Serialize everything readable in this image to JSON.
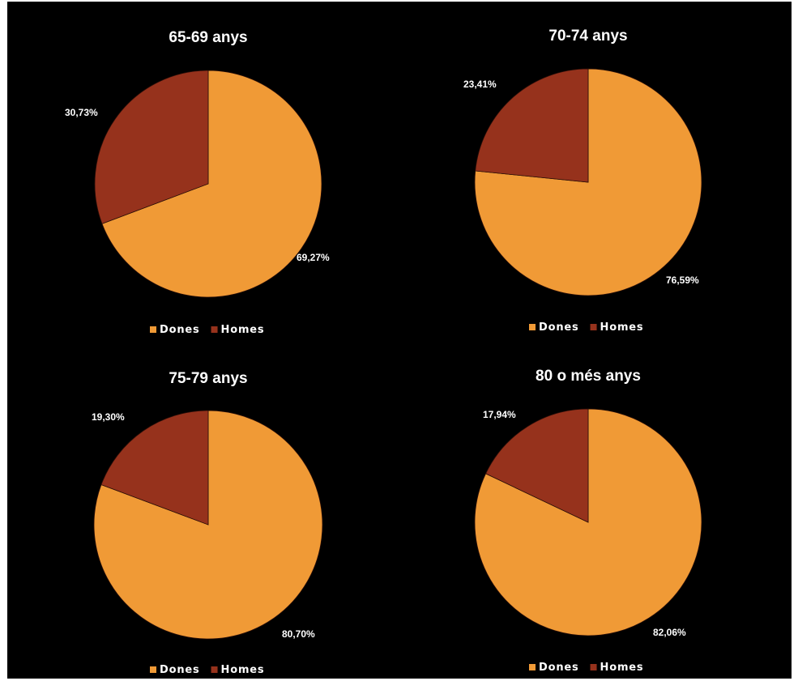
{
  "colors": {
    "background": "#000000",
    "dones": "#f09a36",
    "homes": "#96321c",
    "text": "#ffffff"
  },
  "chart_data": [
    {
      "type": "pie",
      "title": "65-69 anys",
      "categories": [
        "Dones",
        "Homes"
      ],
      "values": [
        69.27,
        30.73
      ],
      "data_labels": [
        "69,27%",
        "30,73%"
      ],
      "legend": [
        "Dones",
        "Homes"
      ],
      "legend_position": "bottom"
    },
    {
      "type": "pie",
      "title": "70-74 anys",
      "categories": [
        "Dones",
        "Homes"
      ],
      "values": [
        76.59,
        23.41
      ],
      "data_labels": [
        "76,59%",
        "23,41%"
      ],
      "legend": [
        "Dones",
        "Homes"
      ],
      "legend_position": "bottom"
    },
    {
      "type": "pie",
      "title": "75-79 anys",
      "categories": [
        "Dones",
        "Homes"
      ],
      "values": [
        80.7,
        19.3
      ],
      "data_labels": [
        "80,70%",
        "19,30%"
      ],
      "legend": [
        "Dones",
        "Homes"
      ],
      "legend_position": "bottom"
    },
    {
      "type": "pie",
      "title": "80 o més anys",
      "categories": [
        "Dones",
        "Homes"
      ],
      "values": [
        82.06,
        17.94
      ],
      "data_labels": [
        "82,06%",
        "17,94%"
      ],
      "legend": [
        "Dones",
        "Homes"
      ],
      "legend_position": "bottom"
    }
  ]
}
